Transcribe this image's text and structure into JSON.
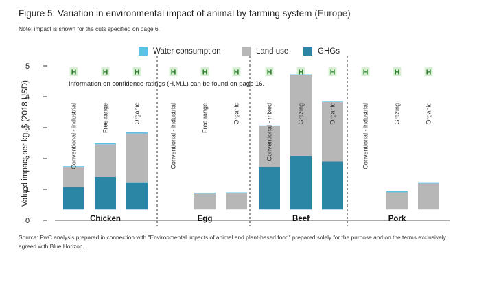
{
  "figure": {
    "title": "Figure 5: Variation in environmental impact of animal by farming system",
    "region": "(Europe)",
    "note": "Note: impact is shown for the cuts specified on page 6.",
    "source": "Source: PwC analysis prepared in connection with \"Environmental impacts of animal and plant-based food\" prepared solely for the purpose and on the terms exclusively agreed with Blue Horizon."
  },
  "colors": {
    "water": "#5bc4e6",
    "land": "#b7b7b7",
    "ghg": "#2b86a6",
    "rating_bg": "#d8f1d4",
    "rating_text": "#2a7a2a"
  },
  "chart_data": {
    "type": "bar",
    "stacked": true,
    "title": "Figure 5: Variation in environmental impact of animal by farming system (Europe)",
    "ylabel": "Valued impact per kg, $ (2018 USD)",
    "ylim": [
      0,
      5
    ],
    "yticks": [
      0,
      1,
      2,
      3,
      4,
      5
    ],
    "grid": false,
    "legend": [
      "Water consumption",
      "Land use",
      "GHGs"
    ],
    "legend_position": "top-center",
    "annotation": "Information on confidence ratings (H,M,L) can be found on page 16.",
    "groups": [
      {
        "name": "Chicken",
        "bars": [
          {
            "system": "Conventional - industrial",
            "ghg": 0.73,
            "land": 0.63,
            "water": 0.04,
            "rating": "H"
          },
          {
            "system": "Free range",
            "ghg": 1.05,
            "land": 1.06,
            "water": 0.04,
            "rating": "H"
          },
          {
            "system": "Organic",
            "ghg": 0.88,
            "land": 1.58,
            "water": 0.04,
            "rating": "H"
          }
        ]
      },
      {
        "name": "Egg",
        "bars": [
          {
            "system": "Conventional - industrial",
            "ghg": 0,
            "land": 0,
            "water": 0,
            "rating": "H"
          },
          {
            "system": "Free range",
            "ghg": 0,
            "land": 0.51,
            "water": 0.03,
            "rating": "H"
          },
          {
            "system": "Organic",
            "ghg": 0,
            "land": 0.53,
            "water": 0.02,
            "rating": "H"
          }
        ]
      },
      {
        "name": "Beef",
        "bars": [
          {
            "system": "Conventional - mixed",
            "ghg": 1.37,
            "land": 1.33,
            "water": 0.02,
            "rating": "H"
          },
          {
            "system": "Grazing",
            "ghg": 1.73,
            "land": 2.61,
            "water": 0.03,
            "rating": "H"
          },
          {
            "system": "Organic",
            "ghg": 1.55,
            "land": 1.93,
            "water": 0.03,
            "rating": "H"
          }
        ]
      },
      {
        "name": "Pork",
        "bars": [
          {
            "system": "Conventional - industrial",
            "ghg": 0,
            "land": 0,
            "water": 0,
            "rating": "H"
          },
          {
            "system": "Grazing",
            "ghg": 0,
            "land": 0.55,
            "water": 0.04,
            "rating": "H"
          },
          {
            "system": "Organic",
            "ghg": 0,
            "land": 0.84,
            "water": 0.04,
            "rating": "H"
          }
        ]
      }
    ]
  }
}
